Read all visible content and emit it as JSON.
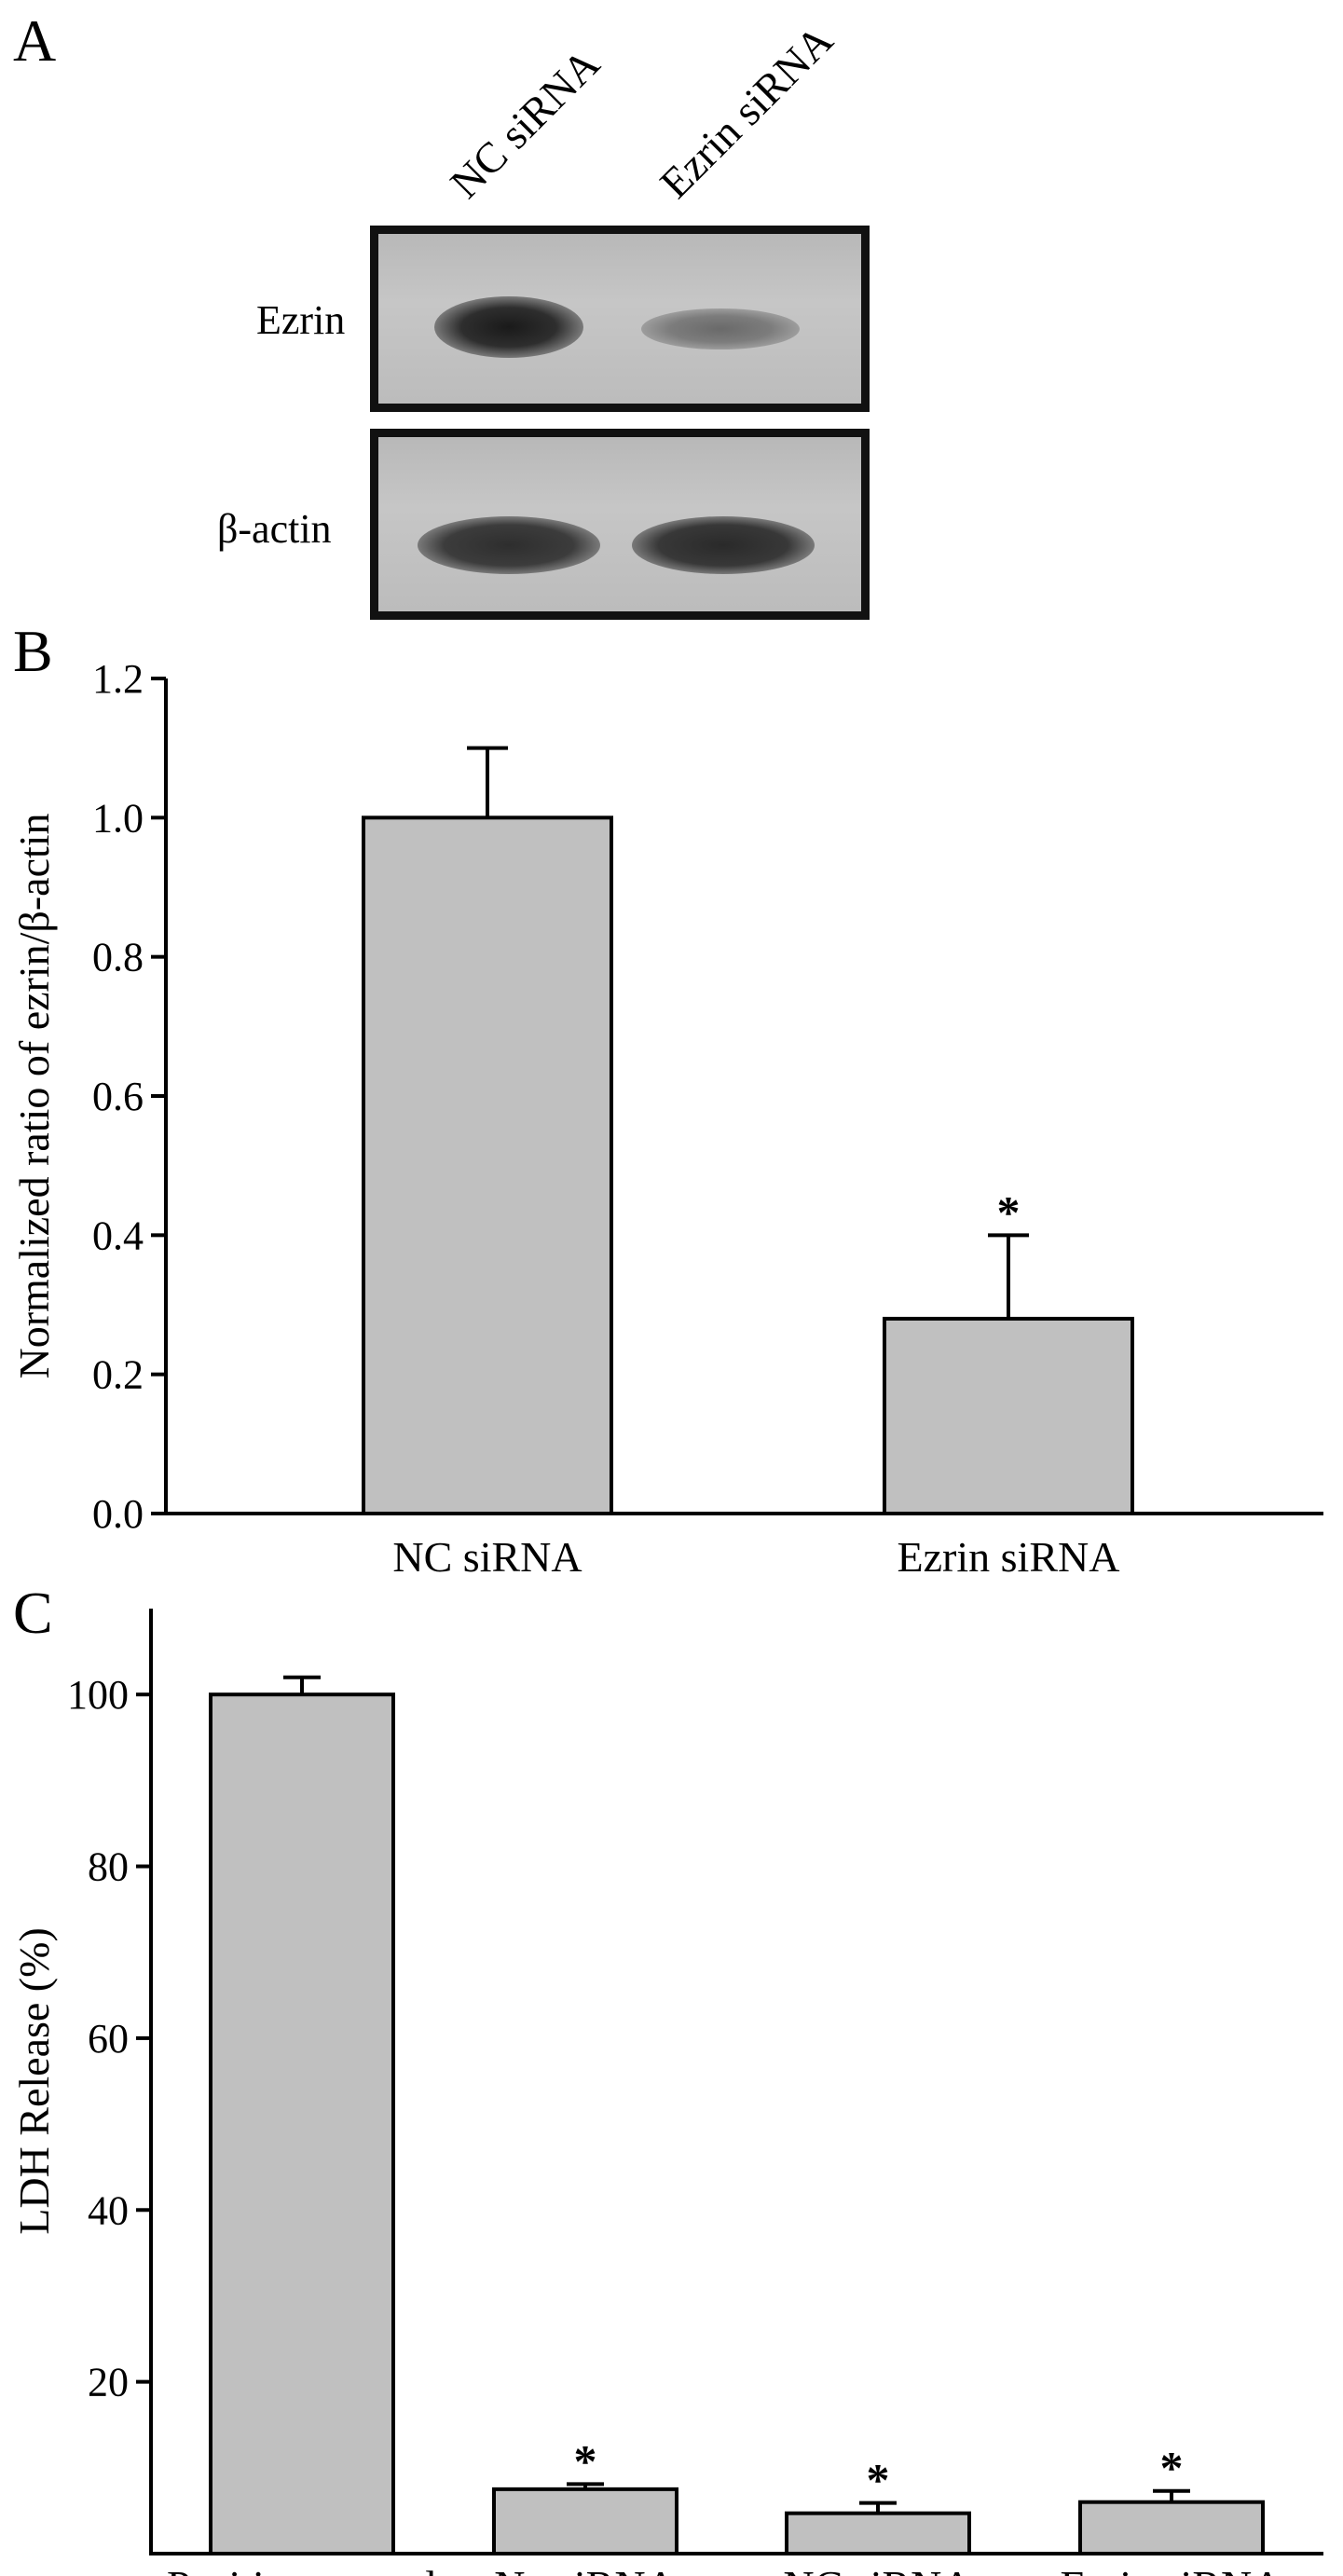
{
  "panel_a": {
    "label": "A",
    "lanes": [
      "NC siRNA",
      "Ezrin siRNA"
    ],
    "bands": [
      "Ezrin",
      "β-actin"
    ]
  },
  "chart_data": [
    {
      "panel": "B",
      "type": "bar",
      "categories": [
        "NC siRNA",
        "Ezrin siRNA"
      ],
      "values": [
        1.0,
        0.28
      ],
      "errors": [
        0.1,
        0.12
      ],
      "significance": [
        "",
        "*"
      ],
      "ylabel": "Normalized ratio of ezrin/β-actin",
      "xlabel": "",
      "ylim": [
        0,
        1.2
      ],
      "yticks": [
        0.0,
        0.2,
        0.4,
        0.6,
        0.8,
        1.0,
        1.2
      ],
      "ytick_labels": [
        "0.0",
        "0.2",
        "0.4",
        "0.6",
        "0.8",
        "1.0",
        "1.2"
      ],
      "bar_color": "#c0c0c0",
      "grid": false
    },
    {
      "panel": "C",
      "type": "bar",
      "categories": [
        "Positive control",
        "No siRNA",
        "NC siRNA",
        "Ezrin siRNA"
      ],
      "values": [
        100,
        7.5,
        4.7,
        6.0
      ],
      "errors": [
        2.0,
        0.6,
        1.2,
        1.3
      ],
      "significance": [
        "",
        "*",
        "*",
        "*"
      ],
      "ylabel": "LDH Release (%)",
      "xlabel": "",
      "ylim": [
        0,
        110
      ],
      "yticks": [
        20,
        40,
        60,
        80,
        100
      ],
      "ytick_labels": [
        "20",
        "40",
        "60",
        "80",
        "100"
      ],
      "bar_color": "#c0c0c0",
      "grid": false
    }
  ]
}
